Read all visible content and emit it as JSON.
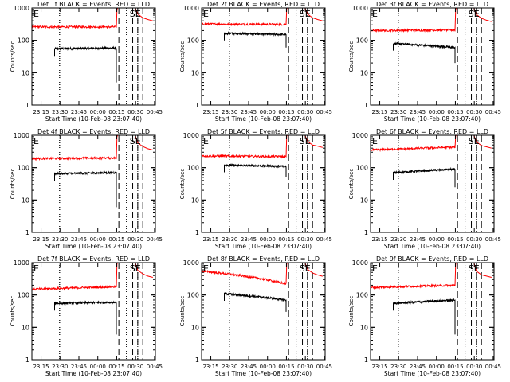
{
  "figure": {
    "xlabel": "Start Time (10-Feb-08 23:07:40)",
    "ylabel": "Counts/sec",
    "x_tick_labels": [
      "23:15",
      "23:30",
      "23:45",
      "00:00",
      "00:15",
      "00:30",
      "00:45"
    ],
    "y_tick_labels": [
      "1",
      "10",
      "100",
      "1000"
    ],
    "flag_E": "E",
    "flag_SE": "SE",
    "colors": {
      "events": "#000000",
      "lld": "#ff0000",
      "axes": "#000000"
    }
  },
  "chart_data": [
    {
      "type": "line",
      "title": "Det 1f BLACK = Events, RED = LLD",
      "xlabel": "Start Time (10-Feb-08 23:07:40)",
      "ylabel": "Counts/sec",
      "scale": "log",
      "ylim": [
        1,
        1000
      ],
      "xlim_min": [
        0,
        98
      ],
      "ytick_labels": [
        "1",
        "10",
        "100",
        "1000"
      ],
      "xtick_labels": [
        "23:15",
        "23:30",
        "23:45",
        "00:00",
        "00:15",
        "00:30",
        "00:45"
      ],
      "series": [
        {
          "name": "Events",
          "color": "#000000",
          "t_start": 18,
          "t_end": 67,
          "start": 55,
          "end": 58,
          "drop": 5
        },
        {
          "name": "LLD",
          "color": "#ff0000",
          "t_start": 0,
          "t_end": 67,
          "start": 260,
          "end": 260,
          "post_peak": [
            900,
            500,
            400
          ]
        }
      ],
      "vlines_dotted_min": [
        22,
        75,
        84
      ],
      "vlines_dashed_min": [
        69,
        80,
        84,
        88
      ]
    },
    {
      "type": "line",
      "title": "Det 2f BLACK = Events, RED = LLD",
      "xlabel": "Start Time (10-Feb-08 23:07:40)",
      "ylabel": "Counts/sec",
      "scale": "log",
      "ylim": [
        1,
        1000
      ],
      "xlim_min": [
        0,
        98
      ],
      "ytick_labels": [
        "1",
        "10",
        "100",
        "1000"
      ],
      "xtick_labels": [
        "23:15",
        "23:30",
        "23:45",
        "00:00",
        "00:15",
        "00:30",
        "00:45"
      ],
      "series": [
        {
          "name": "Events",
          "color": "#000000",
          "t_start": 18,
          "t_end": 67,
          "start": 165,
          "end": 150,
          "drop": 60
        },
        {
          "name": "LLD",
          "color": "#ff0000",
          "t_start": 0,
          "t_end": 67,
          "start": 320,
          "end": 310,
          "post_peak": [
            950,
            500,
            400
          ]
        }
      ],
      "vlines_dotted_min": [
        22,
        75,
        84
      ],
      "vlines_dashed_min": [
        69,
        80,
        84,
        88
      ]
    },
    {
      "type": "line",
      "title": "Det 3f BLACK = Events, RED = LLD",
      "xlabel": "Start Time (10-Feb-08 23:07:40)",
      "ylabel": "Counts/sec",
      "scale": "log",
      "ylim": [
        1,
        1000
      ],
      "xlim_min": [
        0,
        98
      ],
      "ytick_labels": [
        "1",
        "10",
        "100",
        "1000"
      ],
      "xtick_labels": [
        "23:15",
        "23:30",
        "23:45",
        "00:00",
        "00:15",
        "00:30",
        "00:45"
      ],
      "series": [
        {
          "name": "Events",
          "color": "#000000",
          "t_start": 18,
          "t_end": 67,
          "start": 80,
          "end": 60,
          "drop": 20
        },
        {
          "name": "LLD",
          "color": "#ff0000",
          "t_start": 0,
          "t_end": 67,
          "start": 200,
          "end": 210,
          "post_peak": [
            900,
            480,
            380
          ]
        }
      ],
      "vlines_dotted_min": [
        22,
        75,
        84
      ],
      "vlines_dashed_min": [
        69,
        80,
        84,
        88
      ]
    },
    {
      "type": "line",
      "title": "Det 4f BLACK = Events, RED = LLD",
      "xlabel": "Start Time (10-Feb-08 23:07:40)",
      "ylabel": "Counts/sec",
      "scale": "log",
      "ylim": [
        1,
        1000
      ],
      "xlim_min": [
        0,
        98
      ],
      "ytick_labels": [
        "1",
        "10",
        "100",
        "1000"
      ],
      "xtick_labels": [
        "23:15",
        "23:30",
        "23:45",
        "00:00",
        "00:15",
        "00:30",
        "00:45"
      ],
      "series": [
        {
          "name": "Events",
          "color": "#000000",
          "t_start": 18,
          "t_end": 67,
          "start": 65,
          "end": 70,
          "drop": 6
        },
        {
          "name": "LLD",
          "color": "#ff0000",
          "t_start": 0,
          "t_end": 67,
          "start": 190,
          "end": 200,
          "post_peak": [
            900,
            450,
            350
          ]
        }
      ],
      "vlines_dotted_min": [
        22,
        75,
        84
      ],
      "vlines_dashed_min": [
        69,
        80,
        84,
        88
      ]
    },
    {
      "type": "line",
      "title": "Det 5f BLACK = Events, RED = LLD",
      "xlabel": "Start Time (10-Feb-08 23:07:40)",
      "ylabel": "Counts/sec",
      "scale": "log",
      "ylim": [
        1,
        1000
      ],
      "xlim_min": [
        0,
        98
      ],
      "ytick_labels": [
        "1",
        "10",
        "100",
        "1000"
      ],
      "xtick_labels": [
        "23:15",
        "23:30",
        "23:45",
        "00:00",
        "00:15",
        "00:30",
        "00:45"
      ],
      "series": [
        {
          "name": "Events",
          "color": "#000000",
          "t_start": 18,
          "t_end": 67,
          "start": 120,
          "end": 110,
          "drop": 50
        },
        {
          "name": "LLD",
          "color": "#ff0000",
          "t_start": 0,
          "t_end": 67,
          "start": 230,
          "end": 220,
          "post_peak": [
            950,
            500,
            420
          ]
        }
      ],
      "vlines_dotted_min": [
        22,
        75,
        84
      ],
      "vlines_dashed_min": [
        69,
        80,
        84,
        88
      ]
    },
    {
      "type": "line",
      "title": "Det 6f BLACK = Events, RED = LLD",
      "xlabel": "Start Time (10-Feb-08 23:07:40)",
      "ylabel": "Counts/sec",
      "scale": "log",
      "ylim": [
        1,
        1000
      ],
      "xlim_min": [
        0,
        98
      ],
      "ytick_labels": [
        "1",
        "10",
        "100",
        "1000"
      ],
      "xtick_labels": [
        "23:15",
        "23:30",
        "23:45",
        "00:00",
        "00:15",
        "00:30",
        "00:45"
      ],
      "series": [
        {
          "name": "Events",
          "color": "#000000",
          "t_start": 18,
          "t_end": 67,
          "start": 70,
          "end": 90,
          "drop": 25
        },
        {
          "name": "LLD",
          "color": "#ff0000",
          "t_start": 0,
          "t_end": 67,
          "start": 350,
          "end": 430,
          "post_peak": [
            950,
            480,
            400
          ]
        }
      ],
      "vlines_dotted_min": [
        22,
        75,
        84
      ],
      "vlines_dashed_min": [
        69,
        80,
        84,
        88
      ]
    },
    {
      "type": "line",
      "title": "Det 7f BLACK = Events, RED = LLD",
      "xlabel": "Start Time (10-Feb-08 23:07:40)",
      "ylabel": "Counts/sec",
      "scale": "log",
      "ylim": [
        1,
        1000
      ],
      "xlim_min": [
        0,
        98
      ],
      "ytick_labels": [
        "1",
        "10",
        "100",
        "1000"
      ],
      "xtick_labels": [
        "23:15",
        "23:30",
        "23:45",
        "00:00",
        "00:15",
        "00:30",
        "00:45"
      ],
      "series": [
        {
          "name": "Events",
          "color": "#000000",
          "t_start": 18,
          "t_end": 67,
          "start": 55,
          "end": 60,
          "drop": 6
        },
        {
          "name": "LLD",
          "color": "#ff0000",
          "t_start": 0,
          "t_end": 67,
          "start": 150,
          "end": 180,
          "post_peak": [
            900,
            450,
            350
          ]
        }
      ],
      "vlines_dotted_min": [
        22,
        75,
        84
      ],
      "vlines_dashed_min": [
        69,
        80,
        84,
        88
      ]
    },
    {
      "type": "line",
      "title": "Det 8f BLACK = Events, RED = LLD",
      "xlabel": "Start Time (10-Feb-08 23:07:40)",
      "ylabel": "Counts/sec",
      "scale": "log",
      "ylim": [
        1,
        1000
      ],
      "xlim_min": [
        0,
        98
      ],
      "ytick_labels": [
        "1",
        "10",
        "100",
        "1000"
      ],
      "xtick_labels": [
        "23:15",
        "23:30",
        "23:45",
        "00:00",
        "00:15",
        "00:30",
        "00:45"
      ],
      "series": [
        {
          "name": "Events",
          "color": "#000000",
          "t_start": 18,
          "t_end": 67,
          "start": 110,
          "end": 70,
          "drop": 30
        },
        {
          "name": "LLD",
          "color": "#ff0000",
          "t_start": 0,
          "t_end": 67,
          "start": 550,
          "end": 220,
          "post_peak": [
            900,
            480,
            380
          ]
        }
      ],
      "vlines_dotted_min": [
        22,
        75,
        84
      ],
      "vlines_dashed_min": [
        69,
        80,
        84,
        88
      ]
    },
    {
      "type": "line",
      "title": "Det 9f BLACK = Events, RED = LLD",
      "xlabel": "Start Time (10-Feb-08 23:07:40)",
      "ylabel": "Counts/sec",
      "scale": "log",
      "ylim": [
        1,
        1000
      ],
      "xlim_min": [
        0,
        98
      ],
      "ytick_labels": [
        "1",
        "10",
        "100",
        "1000"
      ],
      "xtick_labels": [
        "23:15",
        "23:30",
        "23:45",
        "00:00",
        "00:15",
        "00:30",
        "00:45"
      ],
      "series": [
        {
          "name": "Events",
          "color": "#000000",
          "t_start": 18,
          "t_end": 67,
          "start": 55,
          "end": 70,
          "drop": 6
        },
        {
          "name": "LLD",
          "color": "#ff0000",
          "t_start": 0,
          "t_end": 67,
          "start": 170,
          "end": 200,
          "post_peak": [
            900,
            420,
            350
          ]
        }
      ],
      "vlines_dotted_min": [
        22,
        75,
        84
      ],
      "vlines_dashed_min": [
        69,
        80,
        84,
        88
      ]
    }
  ]
}
